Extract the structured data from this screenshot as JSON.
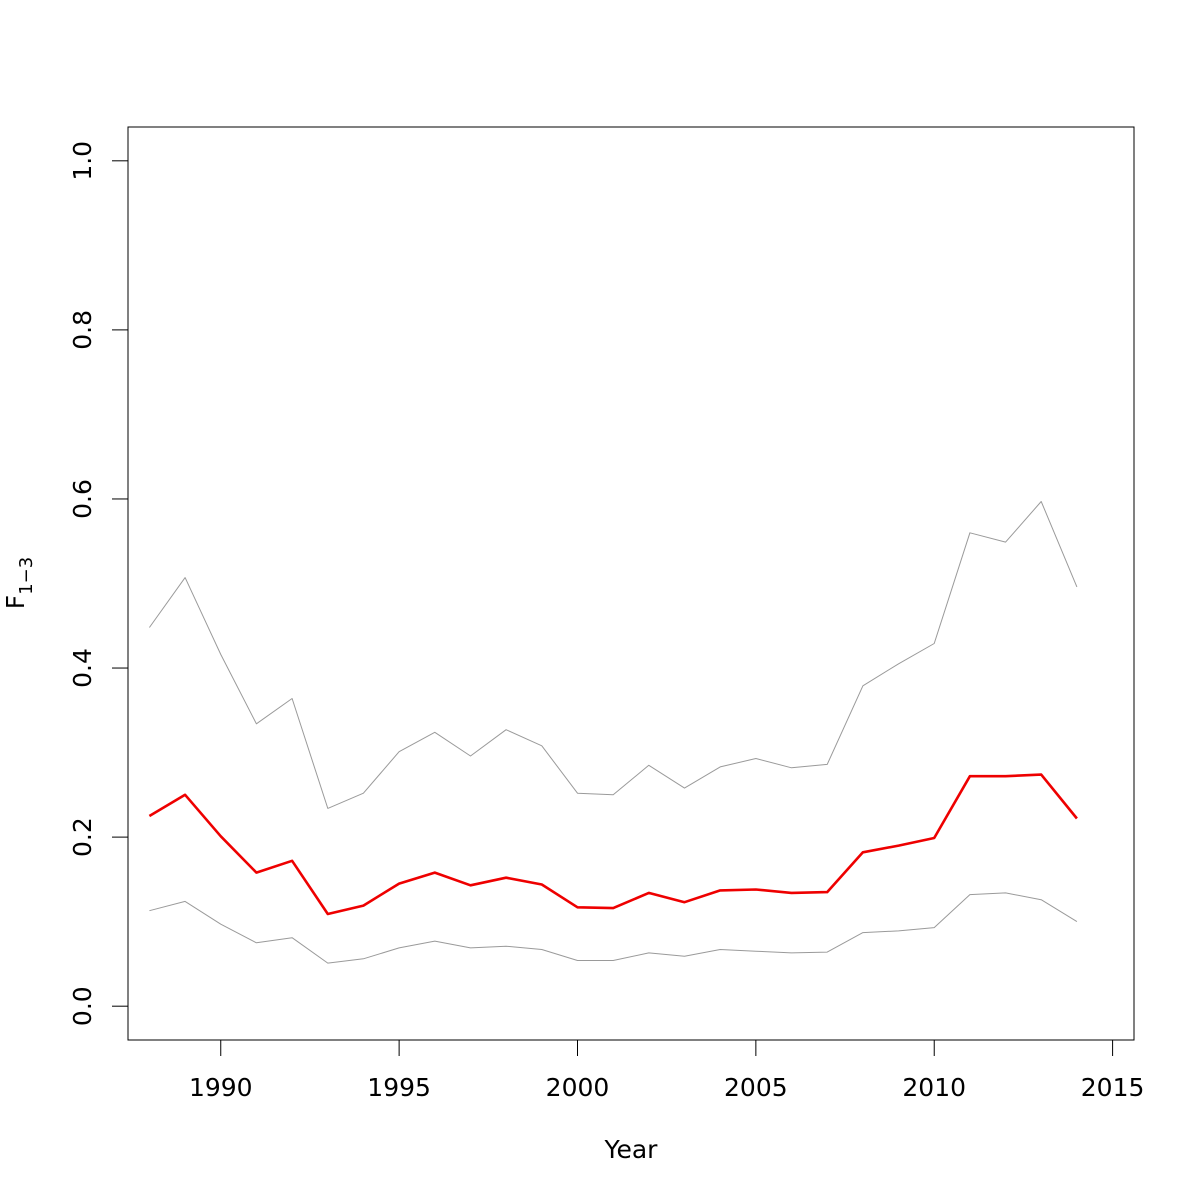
{
  "chart_data": {
    "type": "line",
    "title": "",
    "xlabel": "Year",
    "ylabel": {
      "main": "F",
      "sub": "1−3"
    },
    "xlim": [
      1987.4,
      2015.6
    ],
    "ylim": [
      -0.04,
      1.04
    ],
    "x_ticks": [
      1990,
      1995,
      2000,
      2005,
      2010,
      2015
    ],
    "y_ticks": [
      0.0,
      0.2,
      0.4,
      0.6,
      0.8,
      1.0
    ],
    "x_tick_labels": [
      "1990",
      "1995",
      "2000",
      "2005",
      "2010",
      "2015"
    ],
    "y_tick_labels": [
      "0.0",
      "0.2",
      "0.4",
      "0.6",
      "0.8",
      "1.0"
    ],
    "grid": false,
    "legend": "none",
    "x": [
      1988,
      1989,
      1990,
      1991,
      1992,
      1993,
      1994,
      1995,
      1996,
      1997,
      1998,
      1999,
      2000,
      2001,
      2002,
      2003,
      2004,
      2005,
      2006,
      2007,
      2008,
      2009,
      2010,
      2011,
      2012,
      2013,
      2014
    ],
    "series": [
      {
        "color": "#9a9a9a",
        "style": "thin",
        "values": [
          0.448,
          0.507,
          0.416,
          0.334,
          0.364,
          0.234,
          0.252,
          0.301,
          0.324,
          0.296,
          0.327,
          0.308,
          0.252,
          0.25,
          0.285,
          0.258,
          0.283,
          0.293,
          0.282,
          0.286,
          0.379,
          0.405,
          0.429,
          0.56,
          0.549,
          0.597,
          0.496
        ]
      },
      {
        "color": "#ee0000",
        "style": "thick",
        "values": [
          0.225,
          0.25,
          0.201,
          0.158,
          0.172,
          0.109,
          0.119,
          0.145,
          0.158,
          0.143,
          0.152,
          0.144,
          0.117,
          0.116,
          0.134,
          0.123,
          0.137,
          0.138,
          0.134,
          0.135,
          0.182,
          0.19,
          0.199,
          0.272,
          0.272,
          0.274,
          0.222
        ]
      },
      {
        "color": "#9a9a9a",
        "style": "thin",
        "values": [
          0.113,
          0.124,
          0.097,
          0.075,
          0.081,
          0.051,
          0.056,
          0.069,
          0.077,
          0.069,
          0.071,
          0.067,
          0.054,
          0.054,
          0.063,
          0.059,
          0.067,
          0.065,
          0.063,
          0.064,
          0.087,
          0.089,
          0.093,
          0.132,
          0.134,
          0.126,
          0.1
        ]
      }
    ]
  }
}
